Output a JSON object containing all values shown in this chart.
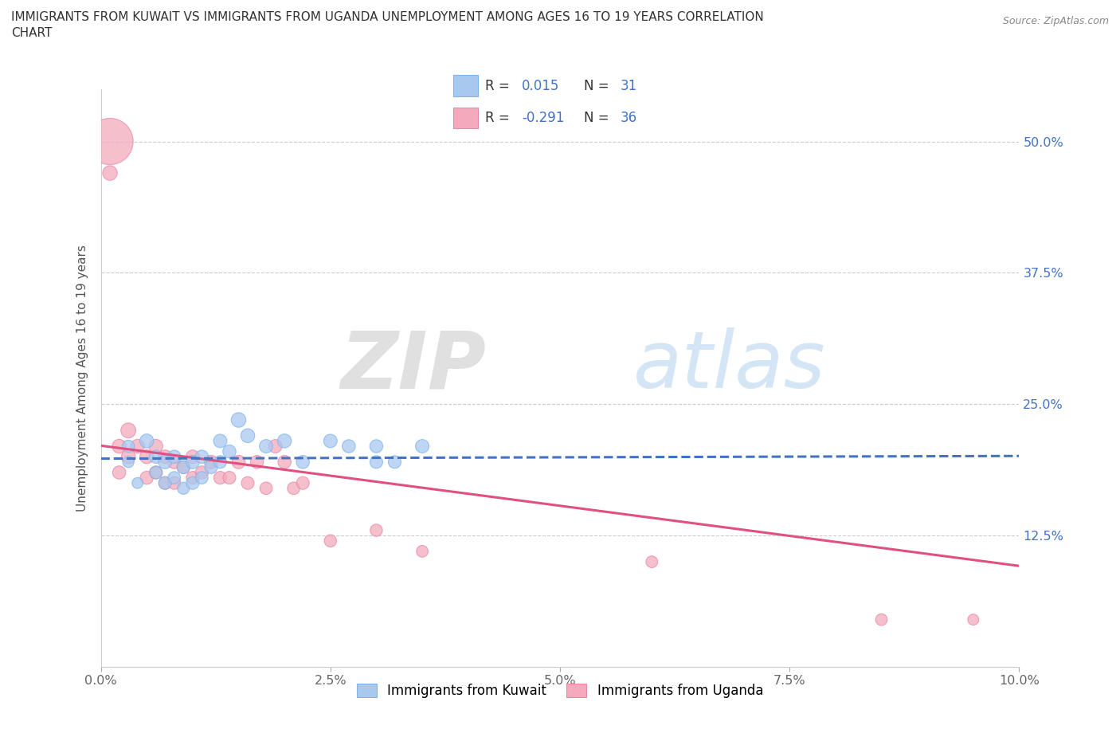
{
  "title": "IMMIGRANTS FROM KUWAIT VS IMMIGRANTS FROM UGANDA UNEMPLOYMENT AMONG AGES 16 TO 19 YEARS CORRELATION\nCHART",
  "source": "Source: ZipAtlas.com",
  "ylabel": "Unemployment Among Ages 16 to 19 years",
  "xlim": [
    0.0,
    0.1
  ],
  "ylim": [
    0.0,
    0.55
  ],
  "xtick_labels": [
    "0.0%",
    "2.5%",
    "5.0%",
    "7.5%",
    "10.0%"
  ],
  "xtick_vals": [
    0.0,
    0.025,
    0.05,
    0.075,
    0.1
  ],
  "ytick_labels": [
    "12.5%",
    "25.0%",
    "37.5%",
    "50.0%"
  ],
  "ytick_vals": [
    0.125,
    0.25,
    0.375,
    0.5
  ],
  "kuwait_color": "#A8C8F0",
  "kuwait_edge_color": "#7EB6E8",
  "uganda_color": "#F4AABC",
  "uganda_edge_color": "#E888A8",
  "kuwait_R": 0.015,
  "kuwait_N": 31,
  "uganda_R": -0.291,
  "uganda_N": 36,
  "legend_label_kuwait": "Immigrants from Kuwait",
  "legend_label_uganda": "Immigrants from Uganda",
  "watermark_zip": "ZIP",
  "watermark_atlas": "atlas",
  "kuwait_trend_color": "#4472C4",
  "uganda_trend_color": "#E05080",
  "kuwait_x": [
    0.003,
    0.003,
    0.004,
    0.005,
    0.006,
    0.006,
    0.007,
    0.007,
    0.008,
    0.008,
    0.009,
    0.009,
    0.01,
    0.01,
    0.011,
    0.011,
    0.012,
    0.013,
    0.013,
    0.014,
    0.015,
    0.016,
    0.018,
    0.02,
    0.022,
    0.025,
    0.027,
    0.03,
    0.03,
    0.032,
    0.035
  ],
  "kuwait_y": [
    0.21,
    0.195,
    0.175,
    0.215,
    0.2,
    0.185,
    0.195,
    0.175,
    0.2,
    0.18,
    0.19,
    0.17,
    0.195,
    0.175,
    0.2,
    0.18,
    0.19,
    0.215,
    0.195,
    0.205,
    0.235,
    0.22,
    0.21,
    0.215,
    0.195,
    0.215,
    0.21,
    0.21,
    0.195,
    0.195,
    0.21
  ],
  "kuwait_size": [
    35,
    30,
    28,
    45,
    40,
    35,
    42,
    38,
    40,
    36,
    38,
    34,
    42,
    38,
    40,
    36,
    38,
    42,
    38,
    40,
    50,
    45,
    42,
    45,
    40,
    42,
    40,
    40,
    38,
    38,
    42
  ],
  "uganda_x": [
    0.001,
    0.001,
    0.002,
    0.002,
    0.003,
    0.003,
    0.004,
    0.005,
    0.005,
    0.006,
    0.006,
    0.007,
    0.007,
    0.008,
    0.008,
    0.009,
    0.01,
    0.01,
    0.011,
    0.012,
    0.013,
    0.014,
    0.015,
    0.016,
    0.017,
    0.018,
    0.019,
    0.02,
    0.021,
    0.022,
    0.025,
    0.03,
    0.035,
    0.06,
    0.085,
    0.095
  ],
  "uganda_y": [
    0.5,
    0.47,
    0.21,
    0.185,
    0.225,
    0.2,
    0.21,
    0.2,
    0.18,
    0.21,
    0.185,
    0.2,
    0.175,
    0.195,
    0.175,
    0.19,
    0.2,
    0.18,
    0.185,
    0.195,
    0.18,
    0.18,
    0.195,
    0.175,
    0.195,
    0.17,
    0.21,
    0.195,
    0.17,
    0.175,
    0.12,
    0.13,
    0.11,
    0.1,
    0.045,
    0.045
  ],
  "uganda_size": [
    500,
    50,
    45,
    40,
    52,
    46,
    44,
    44,
    40,
    44,
    40,
    42,
    38,
    42,
    38,
    40,
    42,
    38,
    40,
    42,
    38,
    38,
    42,
    38,
    40,
    36,
    42,
    40,
    36,
    38,
    35,
    35,
    32,
    32,
    32,
    28
  ]
}
